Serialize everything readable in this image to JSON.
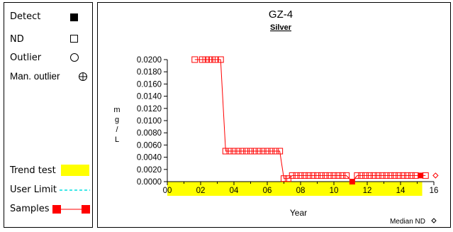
{
  "legend": {
    "detect": "Detect",
    "nd": "ND",
    "outlier": "Outlier",
    "man_outlier": "Man. outlier",
    "trend_test": "Trend test",
    "user_limit": "User Limit",
    "samples": "Samples"
  },
  "colors": {
    "series": "#ff0000",
    "trend_band": "#ffff00",
    "user_limit": "#00e0e0",
    "detect_marker": "#000000"
  },
  "chart_data": {
    "type": "line",
    "title": "GZ-4",
    "subtitle": "Silver",
    "xlabel": "Year",
    "ylabel": "mg/L",
    "ylabel_chars": [
      "m",
      "g",
      "/",
      "L"
    ],
    "xlim": [
      0,
      16
    ],
    "ylim": [
      0,
      0.02
    ],
    "x_ticks": [
      "00",
      "02",
      "04",
      "06",
      "08",
      "10",
      "12",
      "14",
      "16"
    ],
    "y_ticks": [
      "0.0000",
      "0.0020",
      "0.0040",
      "0.0060",
      "0.0080",
      "0.0100",
      "0.0120",
      "0.0140",
      "0.0160",
      "0.0180",
      "0.0200"
    ],
    "trend_test_band": [
      0,
      15.3
    ],
    "median_nd_label": "Median ND",
    "median_nd": {
      "x": 16.1,
      "y": 0.001
    },
    "series": [
      {
        "points": [
          {
            "x": 1.65,
            "y": 0.02,
            "t": "nd"
          },
          {
            "x": 2.1,
            "y": 0.02,
            "t": "nd"
          },
          {
            "x": 2.3,
            "y": 0.02,
            "t": "nd"
          },
          {
            "x": 2.5,
            "y": 0.02,
            "t": "nd"
          },
          {
            "x": 2.7,
            "y": 0.02,
            "t": "nd"
          },
          {
            "x": 2.9,
            "y": 0.02,
            "t": "nd"
          },
          {
            "x": 3.2,
            "y": 0.02,
            "t": "nd"
          },
          {
            "x": 3.5,
            "y": 0.005,
            "t": "nd"
          },
          {
            "x": 3.75,
            "y": 0.005,
            "t": "nd"
          },
          {
            "x": 4.0,
            "y": 0.005,
            "t": "nd"
          },
          {
            "x": 4.25,
            "y": 0.005,
            "t": "nd"
          },
          {
            "x": 4.5,
            "y": 0.005,
            "t": "nd"
          },
          {
            "x": 4.75,
            "y": 0.005,
            "t": "nd"
          },
          {
            "x": 5.0,
            "y": 0.005,
            "t": "nd"
          },
          {
            "x": 5.25,
            "y": 0.005,
            "t": "nd"
          },
          {
            "x": 5.5,
            "y": 0.005,
            "t": "nd"
          },
          {
            "x": 5.75,
            "y": 0.005,
            "t": "nd"
          },
          {
            "x": 6.0,
            "y": 0.005,
            "t": "nd"
          },
          {
            "x": 6.25,
            "y": 0.005,
            "t": "nd"
          },
          {
            "x": 6.5,
            "y": 0.005,
            "t": "nd"
          },
          {
            "x": 6.75,
            "y": 0.005,
            "t": "nd"
          },
          {
            "x": 7.0,
            "y": 0.0005,
            "t": "nd"
          },
          {
            "x": 7.25,
            "y": 0.0005,
            "t": "nd"
          },
          {
            "x": 7.5,
            "y": 0.001,
            "t": "nd"
          },
          {
            "x": 7.75,
            "y": 0.001,
            "t": "nd"
          },
          {
            "x": 8.0,
            "y": 0.001,
            "t": "nd"
          },
          {
            "x": 8.25,
            "y": 0.001,
            "t": "nd"
          },
          {
            "x": 8.5,
            "y": 0.001,
            "t": "nd"
          },
          {
            "x": 8.75,
            "y": 0.001,
            "t": "nd"
          },
          {
            "x": 9.0,
            "y": 0.001,
            "t": "nd"
          },
          {
            "x": 9.25,
            "y": 0.001,
            "t": "nd"
          },
          {
            "x": 9.5,
            "y": 0.001,
            "t": "nd"
          },
          {
            "x": 9.75,
            "y": 0.001,
            "t": "nd"
          },
          {
            "x": 10.0,
            "y": 0.001,
            "t": "nd"
          },
          {
            "x": 10.25,
            "y": 0.001,
            "t": "nd"
          },
          {
            "x": 10.5,
            "y": 0.001,
            "t": "nd"
          },
          {
            "x": 10.75,
            "y": 0.001,
            "t": "nd"
          },
          {
            "x": 11.1,
            "y": 0.0,
            "t": "detect"
          },
          {
            "x": 11.4,
            "y": 0.001,
            "t": "nd"
          },
          {
            "x": 11.65,
            "y": 0.001,
            "t": "nd"
          },
          {
            "x": 11.9,
            "y": 0.001,
            "t": "nd"
          },
          {
            "x": 12.15,
            "y": 0.001,
            "t": "nd"
          },
          {
            "x": 12.4,
            "y": 0.001,
            "t": "nd"
          },
          {
            "x": 12.65,
            "y": 0.001,
            "t": "nd"
          },
          {
            "x": 12.9,
            "y": 0.001,
            "t": "nd"
          },
          {
            "x": 13.15,
            "y": 0.001,
            "t": "nd"
          },
          {
            "x": 13.4,
            "y": 0.001,
            "t": "nd"
          },
          {
            "x": 13.65,
            "y": 0.001,
            "t": "nd"
          },
          {
            "x": 13.9,
            "y": 0.001,
            "t": "nd"
          },
          {
            "x": 14.15,
            "y": 0.001,
            "t": "nd"
          },
          {
            "x": 14.4,
            "y": 0.001,
            "t": "nd"
          },
          {
            "x": 14.65,
            "y": 0.001,
            "t": "nd"
          },
          {
            "x": 14.9,
            "y": 0.001,
            "t": "nd"
          },
          {
            "x": 15.2,
            "y": 0.001,
            "t": "detect"
          },
          {
            "x": 15.5,
            "y": 0.001,
            "t": "nd"
          }
        ]
      }
    ]
  }
}
